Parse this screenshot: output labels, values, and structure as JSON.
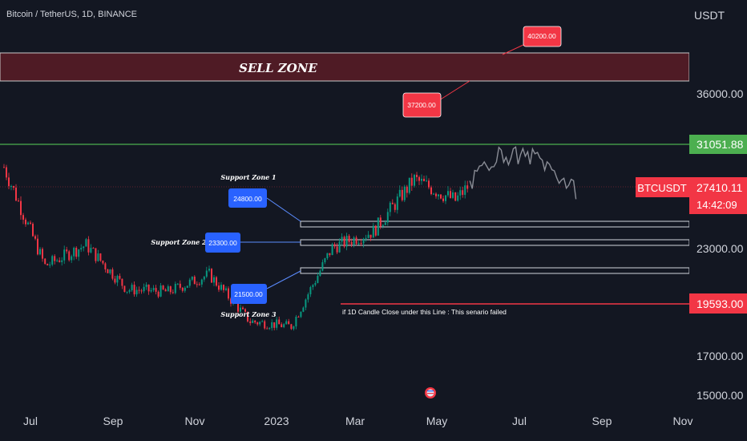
{
  "header": {
    "symbol_line": "Bitcoin / TetherUS, 1D, BINANCE",
    "currency": "USDT"
  },
  "chart_data": {
    "type": "candlestick",
    "title": "Bitcoin / TetherUS, 1D, BINANCE",
    "ylabel": "USDT",
    "ylim": [
      14300,
      42500
    ],
    "y_ticks": [
      "15000.00",
      "17000.00",
      "23000.00",
      "36000.00"
    ],
    "x_ticks": [
      "Jul",
      "Sep",
      "Nov",
      "2023",
      "Mar",
      "May",
      "Jul",
      "Sep",
      "Nov"
    ],
    "series": [
      {
        "name": "",
        "x": [
          "2022-06",
          "2022-07",
          "2022-08",
          "2022-09",
          "2022-10",
          "2022-11",
          "2022-12",
          "2023-01",
          "2023-02",
          "2023-03",
          "2023-04",
          "2023-05",
          "2023-06",
          "2023-07",
          "2023-08"
        ],
        "values": [
          29500,
          21500,
          23200,
          19600,
          19400,
          20800,
          17000,
          16600,
          23000,
          24300,
          28500,
          26800,
          30500,
          30300,
          27400
        ]
      }
    ],
    "zones": {
      "sell_zone": {
        "label": "SELL ZONE",
        "from": 37200,
        "to": 40200
      },
      "supports": [
        {
          "label": "Support Zone 1",
          "price": 24800,
          "price_label": "24800.00"
        },
        {
          "label": "Support Zone 2",
          "price": 23300,
          "price_label": "23300.00"
        },
        {
          "label": "Support Zone 3",
          "price": 21500,
          "price_label": "21500.00"
        }
      ]
    },
    "targets": [
      {
        "price": 37200,
        "label": "37200.00"
      },
      {
        "price": 40200,
        "label": "40200.00"
      }
    ],
    "lines": {
      "resistance": {
        "price": 31051.88,
        "label": "31051.88",
        "color": "#4caf50"
      },
      "invalidation": {
        "price": 19593,
        "label": "19593.00",
        "color": "#f23645",
        "note": "if 1D Candle Close under this Line : This senario failed"
      },
      "current": {
        "price": 27410.11,
        "label": "27410.11",
        "symbol": "BTCUSDT",
        "countdown": "14:42:09"
      }
    },
    "colors": {
      "up": "#089981",
      "down": "#f23645",
      "background": "#131722",
      "sell_zone": "#5a1c26",
      "label_blue": "#2962ff",
      "label_red": "#f23645"
    }
  }
}
